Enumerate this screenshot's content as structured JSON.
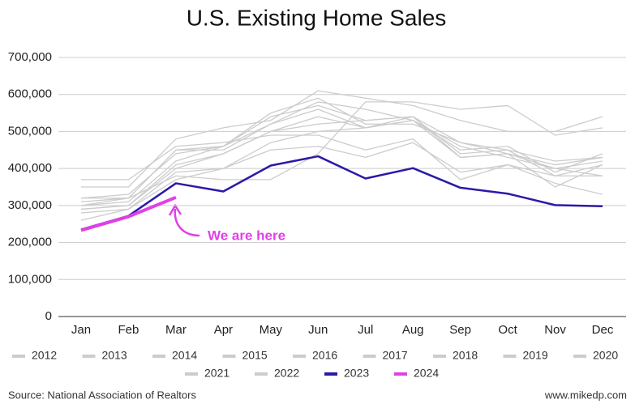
{
  "chart_data": {
    "type": "line",
    "title": "U.S. Existing Home Sales",
    "categories": [
      "Jan",
      "Feb",
      "Mar",
      "Apr",
      "May",
      "Jun",
      "Jul",
      "Aug",
      "Sep",
      "Oct",
      "Nov",
      "Dec"
    ],
    "ylim": [
      0,
      700000
    ],
    "yticks": [
      0,
      {
        "value": 100000,
        "label": "100,000"
      },
      {
        "value": 200000,
        "label": "200,000"
      },
      {
        "value": 300000,
        "label": "300,000"
      },
      {
        "value": 400000,
        "label": "400,000"
      },
      {
        "value": 500000,
        "label": "500,000"
      },
      {
        "value": 600000,
        "label": "600,000"
      },
      {
        "value": 700000,
        "label": "700,000"
      }
    ],
    "grid": true,
    "series": [
      {
        "name": "2012",
        "color": "#cccccc",
        "values": [
          260000,
          290000,
          390000,
          400000,
          450000,
          460000,
          430000,
          470000,
          390000,
          410000,
          380000,
          410000
        ]
      },
      {
        "name": "2013",
        "color": "#cccccc",
        "values": [
          290000,
          300000,
          410000,
          440000,
          500000,
          520000,
          530000,
          540000,
          440000,
          450000,
          380000,
          380000
        ]
      },
      {
        "name": "2014",
        "color": "#cccccc",
        "values": [
          280000,
          290000,
          370000,
          400000,
          470000,
          500000,
          510000,
          530000,
          450000,
          460000,
          390000,
          440000
        ]
      },
      {
        "name": "2015",
        "color": "#cccccc",
        "values": [
          300000,
          310000,
          420000,
          460000,
          520000,
          580000,
          560000,
          530000,
          460000,
          430000,
          400000,
          420000
        ]
      },
      {
        "name": "2016",
        "color": "#cccccc",
        "values": [
          320000,
          330000,
          440000,
          460000,
          540000,
          570000,
          530000,
          540000,
          470000,
          450000,
          420000,
          430000
        ]
      },
      {
        "name": "2017",
        "color": "#cccccc",
        "values": [
          310000,
          320000,
          450000,
          460000,
          550000,
          590000,
          520000,
          520000,
          470000,
          440000,
          410000,
          430000
        ]
      },
      {
        "name": "2018",
        "color": "#cccccc",
        "values": [
          320000,
          320000,
          450000,
          450000,
          520000,
          560000,
          510000,
          530000,
          430000,
          440000,
          400000,
          380000
        ]
      },
      {
        "name": "2019",
        "color": "#cccccc",
        "values": [
          290000,
          300000,
          400000,
          440000,
          500000,
          540000,
          510000,
          540000,
          430000,
          440000,
          350000,
          410000
        ]
      },
      {
        "name": "2020",
        "color": "#cccccc",
        "values": [
          300000,
          320000,
          380000,
          370000,
          370000,
          440000,
          580000,
          580000,
          560000,
          570000,
          490000,
          510000
        ]
      },
      {
        "name": "2021",
        "color": "#cccccc",
        "values": [
          350000,
          350000,
          480000,
          510000,
          530000,
          610000,
          590000,
          570000,
          530000,
          500000,
          500000,
          540000
        ]
      },
      {
        "name": "2022",
        "color": "#cccccc",
        "values": [
          370000,
          370000,
          460000,
          470000,
          490000,
          490000,
          450000,
          480000,
          370000,
          410000,
          360000,
          330000
        ]
      },
      {
        "name": "2023",
        "color": "#2a1aa8",
        "values": [
          235000,
          272000,
          360000,
          338000,
          408000,
          433000,
          373000,
          401000,
          348000,
          332000,
          301000,
          298000
        ]
      },
      {
        "name": "2024",
        "color": "#e040e6",
        "values": [
          233000,
          270000,
          322000,
          null,
          null,
          null,
          null,
          null,
          null,
          null,
          null,
          null
        ]
      }
    ],
    "annotation": "We are here",
    "source": "Source: National Association of Realtors",
    "website": "www.mikedp.com"
  }
}
